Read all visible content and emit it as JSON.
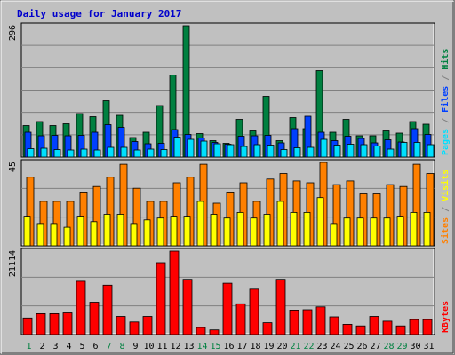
{
  "chart_data": {
    "type": "bar",
    "title": "Daily usage for January 2017",
    "categories": [
      "1",
      "2",
      "3",
      "4",
      "5",
      "6",
      "7",
      "8",
      "9",
      "10",
      "11",
      "12",
      "13",
      "14",
      "15",
      "16",
      "17",
      "18",
      "19",
      "20",
      "21",
      "22",
      "23",
      "24",
      "25",
      "26",
      "27",
      "28",
      "29",
      "30",
      "31"
    ],
    "weekend_days": [
      "1",
      "7",
      "8",
      "14",
      "15",
      "21",
      "22",
      "28",
      "29"
    ],
    "colors": {
      "background": "#c0c0c0",
      "grid": "#808080",
      "hits": "#008040",
      "files": "#0040ff",
      "pages": "#00e0ff",
      "visits": "#ffff00",
      "sites": "#ff8000",
      "kbytes": "#ff0000",
      "title": "#0000cc",
      "weekday_label": "#000000",
      "weekend_label": "#008040"
    },
    "panels": [
      {
        "id": "hits-files-pages",
        "max_label": "296",
        "ymax": 296,
        "series": [
          {
            "name": "Hits",
            "values": [
              71,
              80,
              71,
              75,
              98,
              91,
              127,
              94,
              44,
              56,
              116,
              185,
              296,
              53,
              37,
              31,
              85,
              59,
              137,
              37,
              89,
              64,
              195,
              56,
              85,
              48,
              48,
              59,
              54,
              80,
              74
            ]
          },
          {
            "name": "Files",
            "values": [
              56,
              48,
              49,
              48,
              49,
              56,
              73,
              67,
              35,
              30,
              31,
              62,
              51,
              43,
              33,
              29,
              47,
              48,
              49,
              32,
              64,
              92,
              56,
              37,
              47,
              42,
              32,
              39,
              34,
              64,
              51
            ]
          },
          {
            "name": "Pages",
            "values": [
              19,
              20,
              17,
              16,
              18,
              16,
              22,
              22,
              16,
              18,
              17,
              45,
              40,
              36,
              30,
              28,
              24,
              28,
              27,
              17,
              21,
              22,
              40,
              27,
              29,
              28,
              25,
              18,
              33,
              33,
              28
            ]
          }
        ]
      },
      {
        "id": "visits-sites",
        "max_label": "45",
        "ymax": 45,
        "series": [
          {
            "name": "Sites",
            "values": [
              37,
              24,
              24,
              24,
              29,
              32,
              37,
              44,
              31,
              24,
              24,
              34,
              37,
              44,
              23,
              29,
              34,
              24,
              36,
              39,
              35,
              34,
              45,
              33,
              35,
              28,
              28,
              33,
              32,
              44,
              39
            ]
          },
          {
            "name": "Visits",
            "values": [
              16,
              12,
              12,
              10,
              16,
              13,
              17,
              17,
              12,
              14,
              15,
              16,
              16,
              24,
              17,
              15,
              18,
              15,
              17,
              24,
              18,
              18,
              26,
              12,
              15,
              15,
              15,
              15,
              16,
              18,
              18
            ]
          }
        ]
      },
      {
        "id": "kbytes",
        "max_label": "21114",
        "ymax": 21114,
        "series": [
          {
            "name": "KBytes",
            "values": [
              4200,
              5300,
              5300,
              5500,
              13500,
              8200,
              12500,
              4600,
              3200,
              4600,
              18200,
              21114,
              14000,
              1800,
              1200,
              13000,
              7800,
              11500,
              3000,
              14000,
              6200,
              6300,
              7000,
              4500,
              2600,
              2200,
              4600,
              3400,
              2200,
              3800,
              3800
            ]
          }
        ]
      }
    ],
    "side_labels": [
      {
        "panel": "hits-files-pages",
        "parts": [
          [
            "Pages",
            "pages"
          ],
          [
            " / ",
            "grid"
          ],
          [
            "Files",
            "files"
          ],
          [
            " / ",
            "grid"
          ],
          [
            "Hits",
            "hits"
          ]
        ]
      },
      {
        "panel": "visits-sites",
        "parts": [
          [
            "Sites",
            "sites"
          ],
          [
            " / ",
            "grid"
          ],
          [
            "Visits",
            "visits"
          ]
        ]
      },
      {
        "panel": "kbytes",
        "parts": [
          [
            "KBytes",
            "kbytes"
          ]
        ]
      }
    ]
  }
}
